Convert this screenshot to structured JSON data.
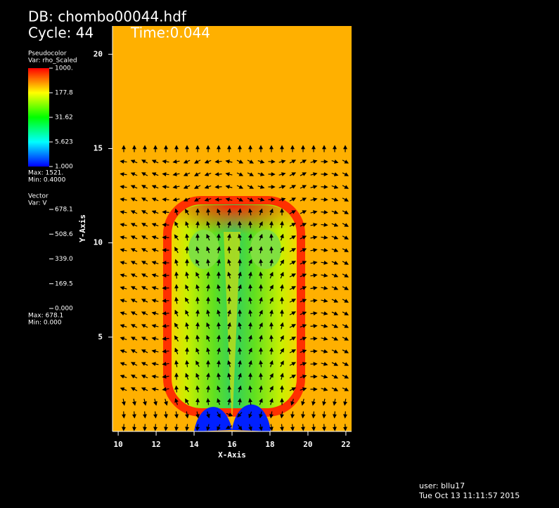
{
  "chart_data": {
    "type": "pseudocolor",
    "title": "DB: chombo00044.hdf",
    "cycle": "Cycle: 44",
    "time": "Time:0.044",
    "xlabel": "X-Axis",
    "ylabel": "Y-Axis",
    "xlim": [
      9.7,
      22.3
    ],
    "ylim": [
      0,
      21.5
    ],
    "xticks": [
      10,
      12,
      14,
      16,
      18,
      20,
      22
    ],
    "yticks": [
      5,
      10,
      15,
      20
    ],
    "pseudocolor_legend": {
      "title": "Pseudocolor",
      "var": "Var: rho_Scaled",
      "labels": [
        "1000.",
        "177.8",
        "31.62",
        "5.623",
        "1.000"
      ],
      "max": "Max:  1521.",
      "min": "Min:  0.4000"
    },
    "vector_legend": {
      "title": "Vector",
      "var": "Var: V",
      "labels": [
        "678.1",
        "508.6",
        "339.0",
        "169.5",
        "0.000"
      ],
      "max": "Max:  678.1",
      "min": "Min:  0.000"
    },
    "user": "user: bllu17",
    "date": "Tue Oct 13 11:11:57 2015"
  }
}
